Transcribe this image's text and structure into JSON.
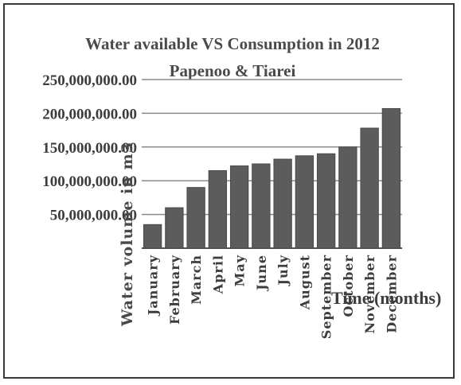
{
  "chart_data": {
    "type": "bar",
    "title": "Water available VS Consumption in 2012",
    "subtitle": "Papenoo & Tiarei",
    "xlabel": "Time (months)",
    "ylabel": "Water volume in m3",
    "ylim": [
      0,
      250000000
    ],
    "yticks": [
      "50,000,000.00",
      "100,000,000.00",
      "150,000,000.00",
      "200,000,000.00",
      "250,000,000.00"
    ],
    "ytick_values": [
      50000000,
      100000000,
      150000000,
      200000000,
      250000000
    ],
    "grid": true,
    "categories": [
      "January",
      "February",
      "March",
      "April",
      "May",
      "June",
      "July",
      "August",
      "September",
      "October",
      "November",
      "December"
    ],
    "values": [
      35000000,
      60000000,
      90000000,
      115000000,
      122000000,
      125000000,
      132000000,
      137000000,
      140000000,
      150000000,
      178000000,
      207000000
    ],
    "colors": {
      "bar": "#5c5c5c",
      "grid": "#8a8a8a",
      "axis": "#555555"
    }
  }
}
